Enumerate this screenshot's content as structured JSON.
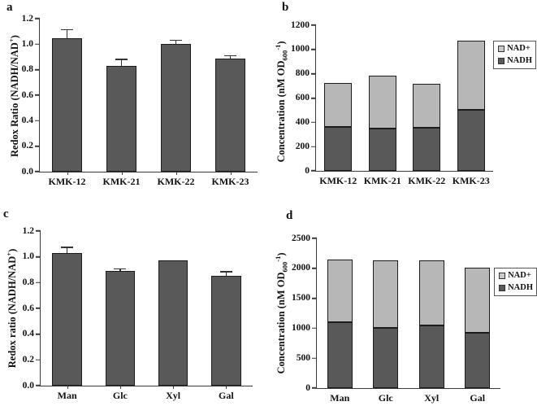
{
  "figure_title": "Redox ratio and NAD(H) concentration bar charts, panels a-d",
  "colors": {
    "bar_dark": "#595959",
    "bar_light": "#b7b7b7",
    "axis": "#3a3a3a",
    "text": "#111111",
    "error_bar": "#333333"
  },
  "legend": {
    "items": [
      {
        "label": "NAD+",
        "swatch": "light"
      },
      {
        "label": "NADH",
        "swatch": "dark"
      }
    ]
  },
  "chart_data": [
    {
      "panel_label": "a",
      "type": "bar",
      "categories": [
        "KMK-12",
        "KMK-21",
        "KMK-22",
        "KMK-23"
      ],
      "values": [
        1.05,
        0.83,
        1.0,
        0.89
      ],
      "errors": [
        0.07,
        0.055,
        0.035,
        0.025
      ],
      "ylabel": {
        "main": "Redox Ratio (NADH/NAD",
        "sub": "",
        "sup": "+",
        "end": ")"
      },
      "ylabel_text": "Redox Ratio (NADH/NAD+)",
      "xlabel": "",
      "ylim": [
        0,
        1.2
      ],
      "ytick_step": 0.2,
      "ytick_decimals": 1,
      "grid": false,
      "legend": false,
      "x_ticks": true,
      "bar_width_pct": "56%",
      "bar_color": "dark"
    },
    {
      "panel_label": "b",
      "type": "stacked-bar",
      "categories": [
        "KMK-12",
        "KMK-21",
        "KMK-22",
        "KMK-23"
      ],
      "series": [
        {
          "name": "NADH",
          "values": [
            365,
            350,
            355,
            505
          ]
        },
        {
          "name": "NAD+",
          "values": [
            360,
            435,
            365,
            565
          ]
        }
      ],
      "totals": [
        725,
        785,
        720,
        1070
      ],
      "ylabel": {
        "main": "Concentration (nM OD",
        "sub": "600",
        "sup": "-1",
        "end": ")"
      },
      "ylabel_text": "Concentration (nM OD600-1)",
      "xlabel": "",
      "ylim": [
        0,
        1200
      ],
      "ytick_step": 200,
      "ytick_decimals": 0,
      "grid": false,
      "legend": true,
      "legend_position": "right",
      "x_ticks": false,
      "bar_width_pct": "63%"
    },
    {
      "panel_label": "c",
      "type": "bar",
      "categories": [
        "Man",
        "Glc",
        "Xyl",
        "Gal"
      ],
      "values": [
        1.03,
        0.89,
        0.975,
        0.85
      ],
      "errors": [
        0.05,
        0.02,
        0,
        0.04
      ],
      "ylabel": {
        "main": "Redox ratio (NADH/NAD",
        "sub": "",
        "sup": "+",
        "end": ")"
      },
      "ylabel_text": "Redox ratio (NADH/NAD+)",
      "xlabel": "",
      "ylim": [
        0,
        1.2
      ],
      "ytick_step": 0.2,
      "ytick_decimals": 1,
      "grid": false,
      "legend": false,
      "x_ticks": true,
      "bar_width_pct": "56%",
      "bar_color": "dark"
    },
    {
      "panel_label": "d",
      "type": "stacked-bar",
      "categories": [
        "Man",
        "Glc",
        "Xyl",
        "Gal"
      ],
      "series": [
        {
          "name": "NADH",
          "values": [
            1100,
            1010,
            1045,
            925
          ]
        },
        {
          "name": "NAD+",
          "values": [
            1050,
            1130,
            1085,
            1085
          ]
        }
      ],
      "totals": [
        2150,
        2140,
        2130,
        2010
      ],
      "ylabel": {
        "main": "Concentration (nM OD",
        "sub": "600",
        "sup": "-1",
        "end": ")"
      },
      "ylabel_text": "Concentration (nM OD600-1)",
      "xlabel": "",
      "ylim": [
        0,
        2500
      ],
      "ytick_step": 500,
      "ytick_decimals": 0,
      "grid": false,
      "legend": true,
      "legend_position": "right",
      "x_ticks": false,
      "bar_width_pct": "55%"
    }
  ]
}
